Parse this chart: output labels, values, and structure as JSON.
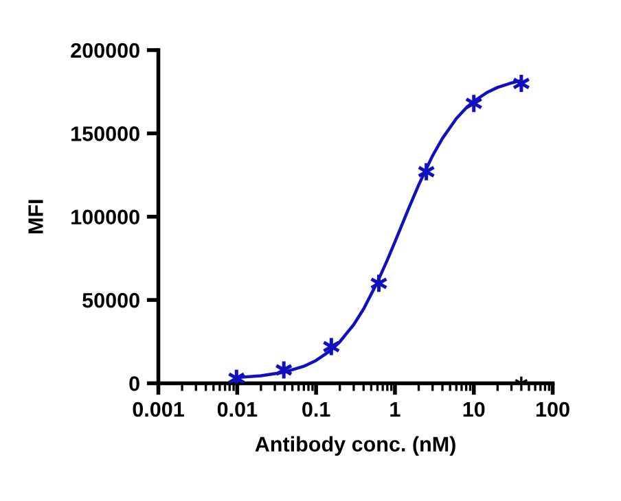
{
  "chart_data": {
    "type": "line",
    "xlabel": "Antibody conc. (nM)",
    "ylabel": "MFI",
    "log": "x",
    "series": [
      {
        "color": "#1010c0",
        "x": [
          0.0098,
          0.02,
          0.04,
          0.07,
          0.1,
          0.15,
          0.2,
          0.3,
          0.4,
          0.6,
          0.8,
          1,
          1.5,
          2,
          3,
          4,
          6,
          8,
          10,
          15,
          20,
          30,
          40
        ],
        "values": [
          3400,
          4500,
          6700,
          10200,
          13700,
          19400,
          24900,
          35200,
          44600,
          60800,
          74000,
          84900,
          105200,
          119100,
          136600,
          147000,
          158900,
          165300,
          169300,
          174800,
          177600,
          180300,
          181700
        ]
      },
      {
        "type": "scatter",
        "color": "#1010c0",
        "x": [
          0.0098,
          0.039,
          0.156,
          0.625,
          2.5,
          10,
          40
        ],
        "values": [
          3000,
          8000,
          22000,
          60000,
          127000,
          168000,
          180000
        ],
        "marker": "cross"
      },
      {
        "type": "scatter",
        "color": "#000000",
        "x": [
          40
        ],
        "values": [
          0
        ],
        "marker": "cross"
      }
    ],
    "xlim": [
      0.001,
      100
    ],
    "xticks": [
      {
        "value": 0.001,
        "label": "0.001"
      },
      {
        "value": 0.01,
        "label": "0.01"
      },
      {
        "value": 0.1,
        "label": "0.1"
      },
      {
        "value": 1,
        "label": "1"
      },
      {
        "value": 10,
        "label": "10"
      },
      {
        "value": 100,
        "label": "100"
      }
    ],
    "ylim": [
      0,
      200000
    ],
    "yticks": [
      0,
      50000,
      100000,
      150000,
      200000
    ],
    "grid": false,
    "legend": false
  }
}
